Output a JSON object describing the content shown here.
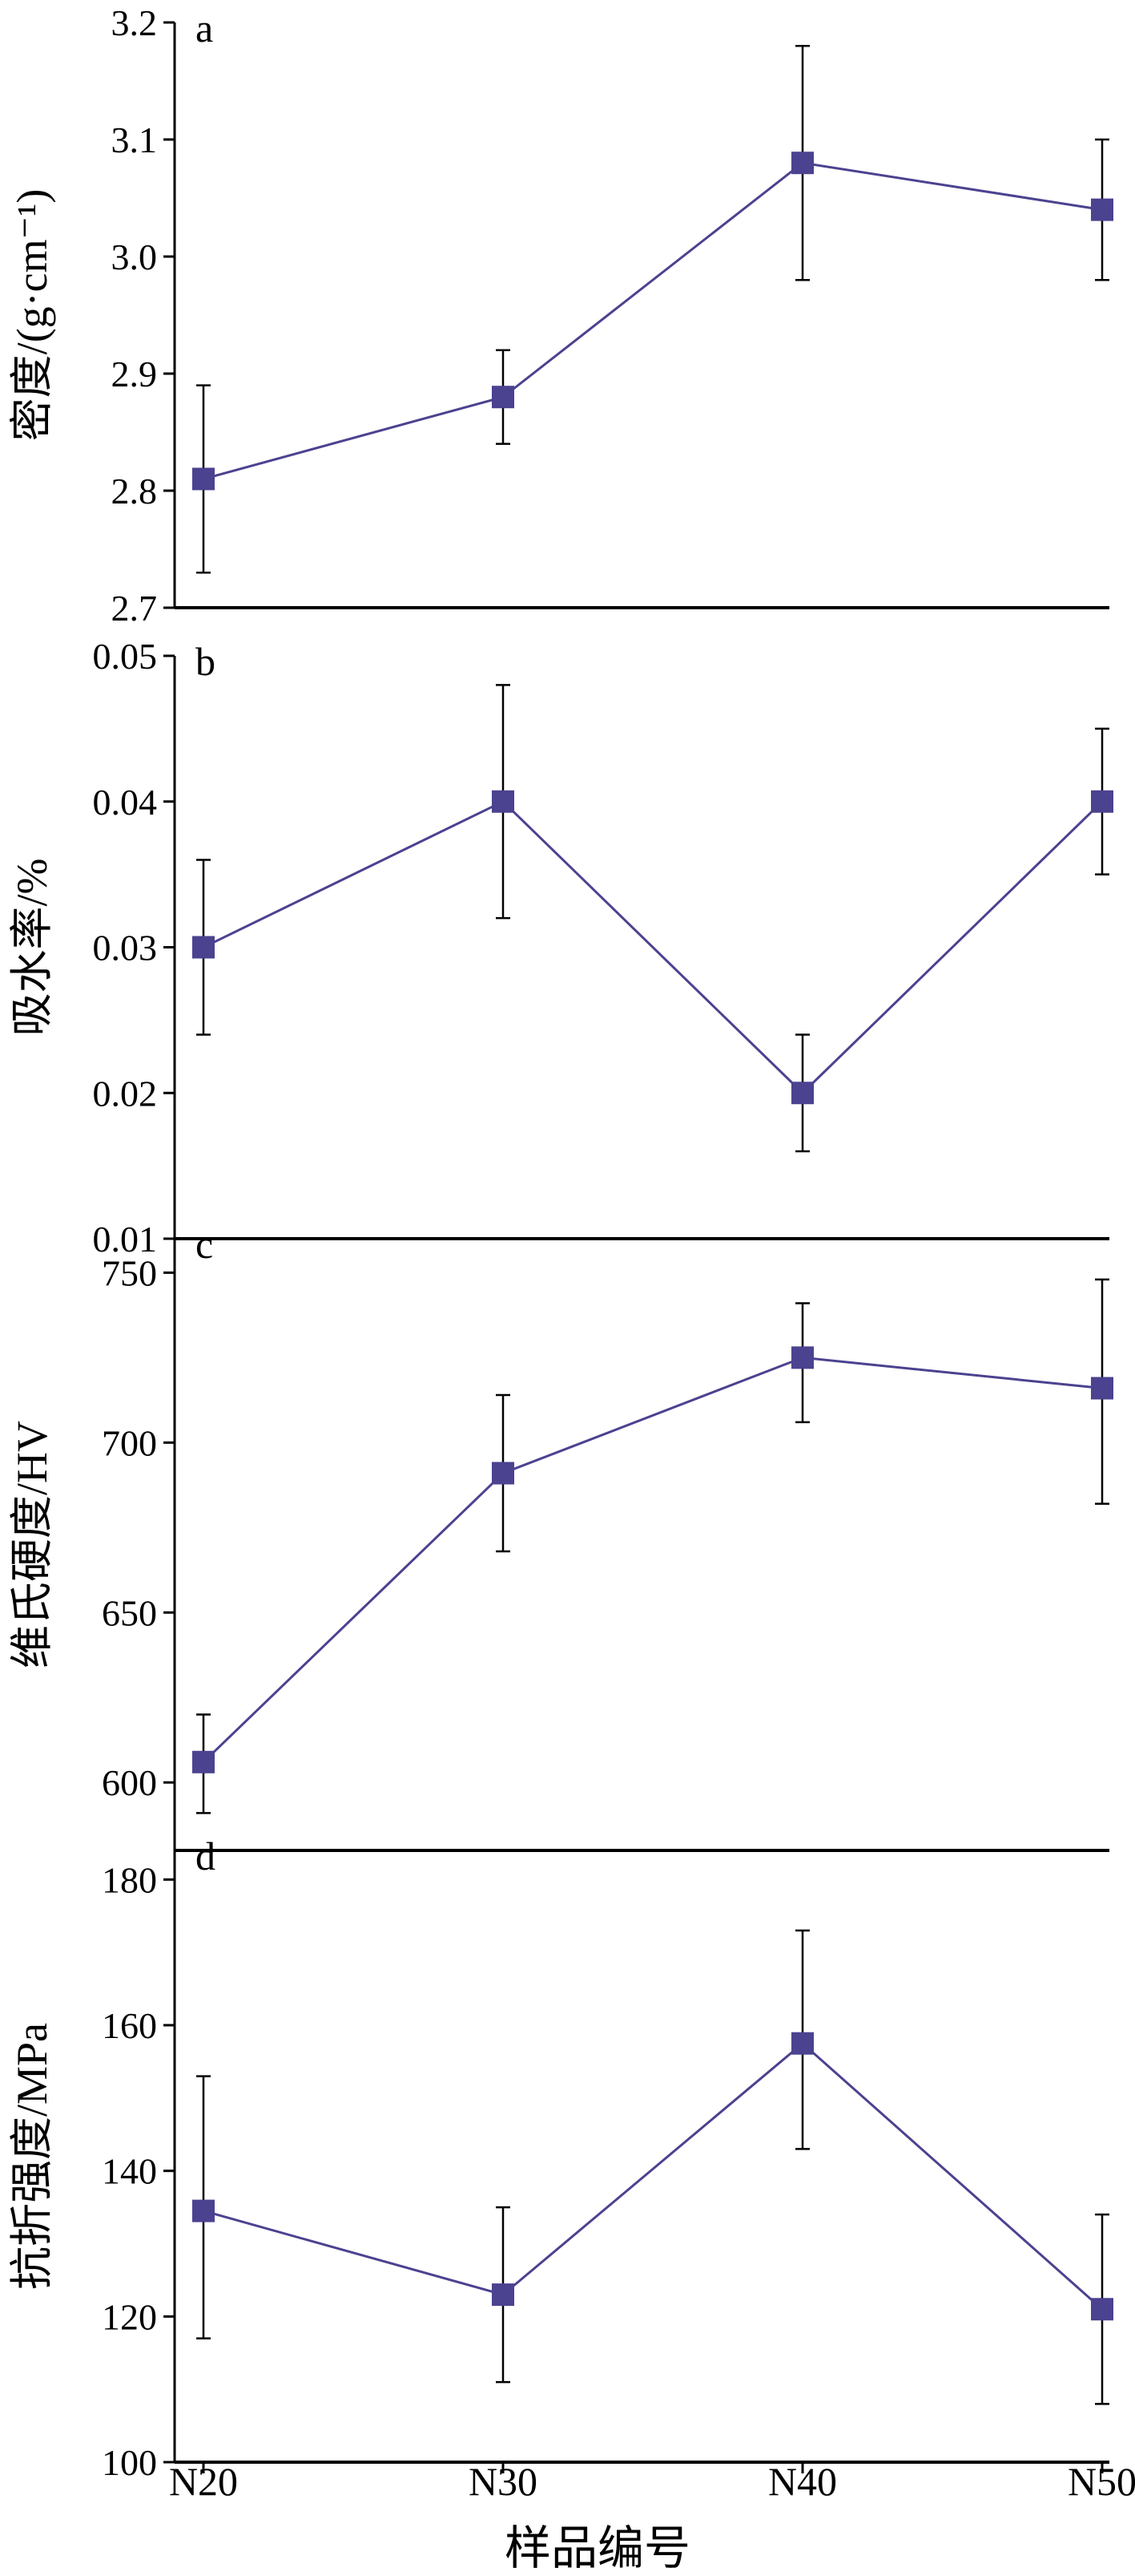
{
  "colors": {
    "series": "#4B4290",
    "axis": "#000000"
  },
  "x_axis": {
    "categories": [
      "N20",
      "N30",
      "N40",
      "N50"
    ],
    "title": "样品编号"
  },
  "chart_data": [
    {
      "type": "line",
      "panel": "a",
      "ylabel": "密度/(g·cm⁻¹)",
      "ylim": [
        2.7,
        3.2
      ],
      "yticks": [
        2.7,
        2.8,
        2.9,
        3.0,
        3.1,
        3.2
      ],
      "ytick_labels": [
        "2.7",
        "2.8",
        "2.9",
        "3.0",
        "3.1",
        "3.2"
      ],
      "categories": [
        "N20",
        "N30",
        "N40",
        "N50"
      ],
      "values": [
        2.81,
        2.88,
        3.08,
        3.04
      ],
      "error_low": [
        2.73,
        2.84,
        2.98,
        2.98
      ],
      "error_high": [
        2.89,
        2.92,
        3.18,
        3.1
      ]
    },
    {
      "type": "line",
      "panel": "b",
      "ylabel": "吸水率/%",
      "ylim": [
        0.01,
        0.05
      ],
      "yticks": [
        0.01,
        0.02,
        0.03,
        0.04,
        0.05
      ],
      "ytick_labels": [
        "0.01",
        "0.02",
        "0.03",
        "0.04",
        "0.05"
      ],
      "categories": [
        "N20",
        "N30",
        "N40",
        "N50"
      ],
      "values": [
        0.03,
        0.04,
        0.02,
        0.04
      ],
      "error_low": [
        0.024,
        0.032,
        0.016,
        0.035
      ],
      "error_high": [
        0.036,
        0.048,
        0.024,
        0.045
      ]
    },
    {
      "type": "line",
      "panel": "c",
      "ylabel": "维氏硬度/HV",
      "ylim": [
        580,
        760
      ],
      "yticks": [
        600,
        650,
        700,
        750
      ],
      "ytick_labels": [
        "600",
        "650",
        "700",
        "750"
      ],
      "categories": [
        "N20",
        "N30",
        "N40",
        "N50"
      ],
      "values": [
        606,
        691,
        725,
        716
      ],
      "error_low": [
        591,
        668,
        706,
        682
      ],
      "error_high": [
        620,
        714,
        741,
        748
      ]
    },
    {
      "type": "line",
      "panel": "d",
      "ylabel": "抗折强度/MPa",
      "ylim": [
        100,
        184
      ],
      "yticks": [
        100,
        120,
        140,
        160,
        180
      ],
      "ytick_labels": [
        "100",
        "120",
        "140",
        "160",
        "180"
      ],
      "categories": [
        "N20",
        "N30",
        "N40",
        "N50"
      ],
      "values": [
        134.5,
        123,
        157.5,
        121
      ],
      "error_low": [
        117,
        111,
        143,
        108
      ],
      "error_high": [
        153,
        135,
        173,
        134
      ]
    }
  ]
}
